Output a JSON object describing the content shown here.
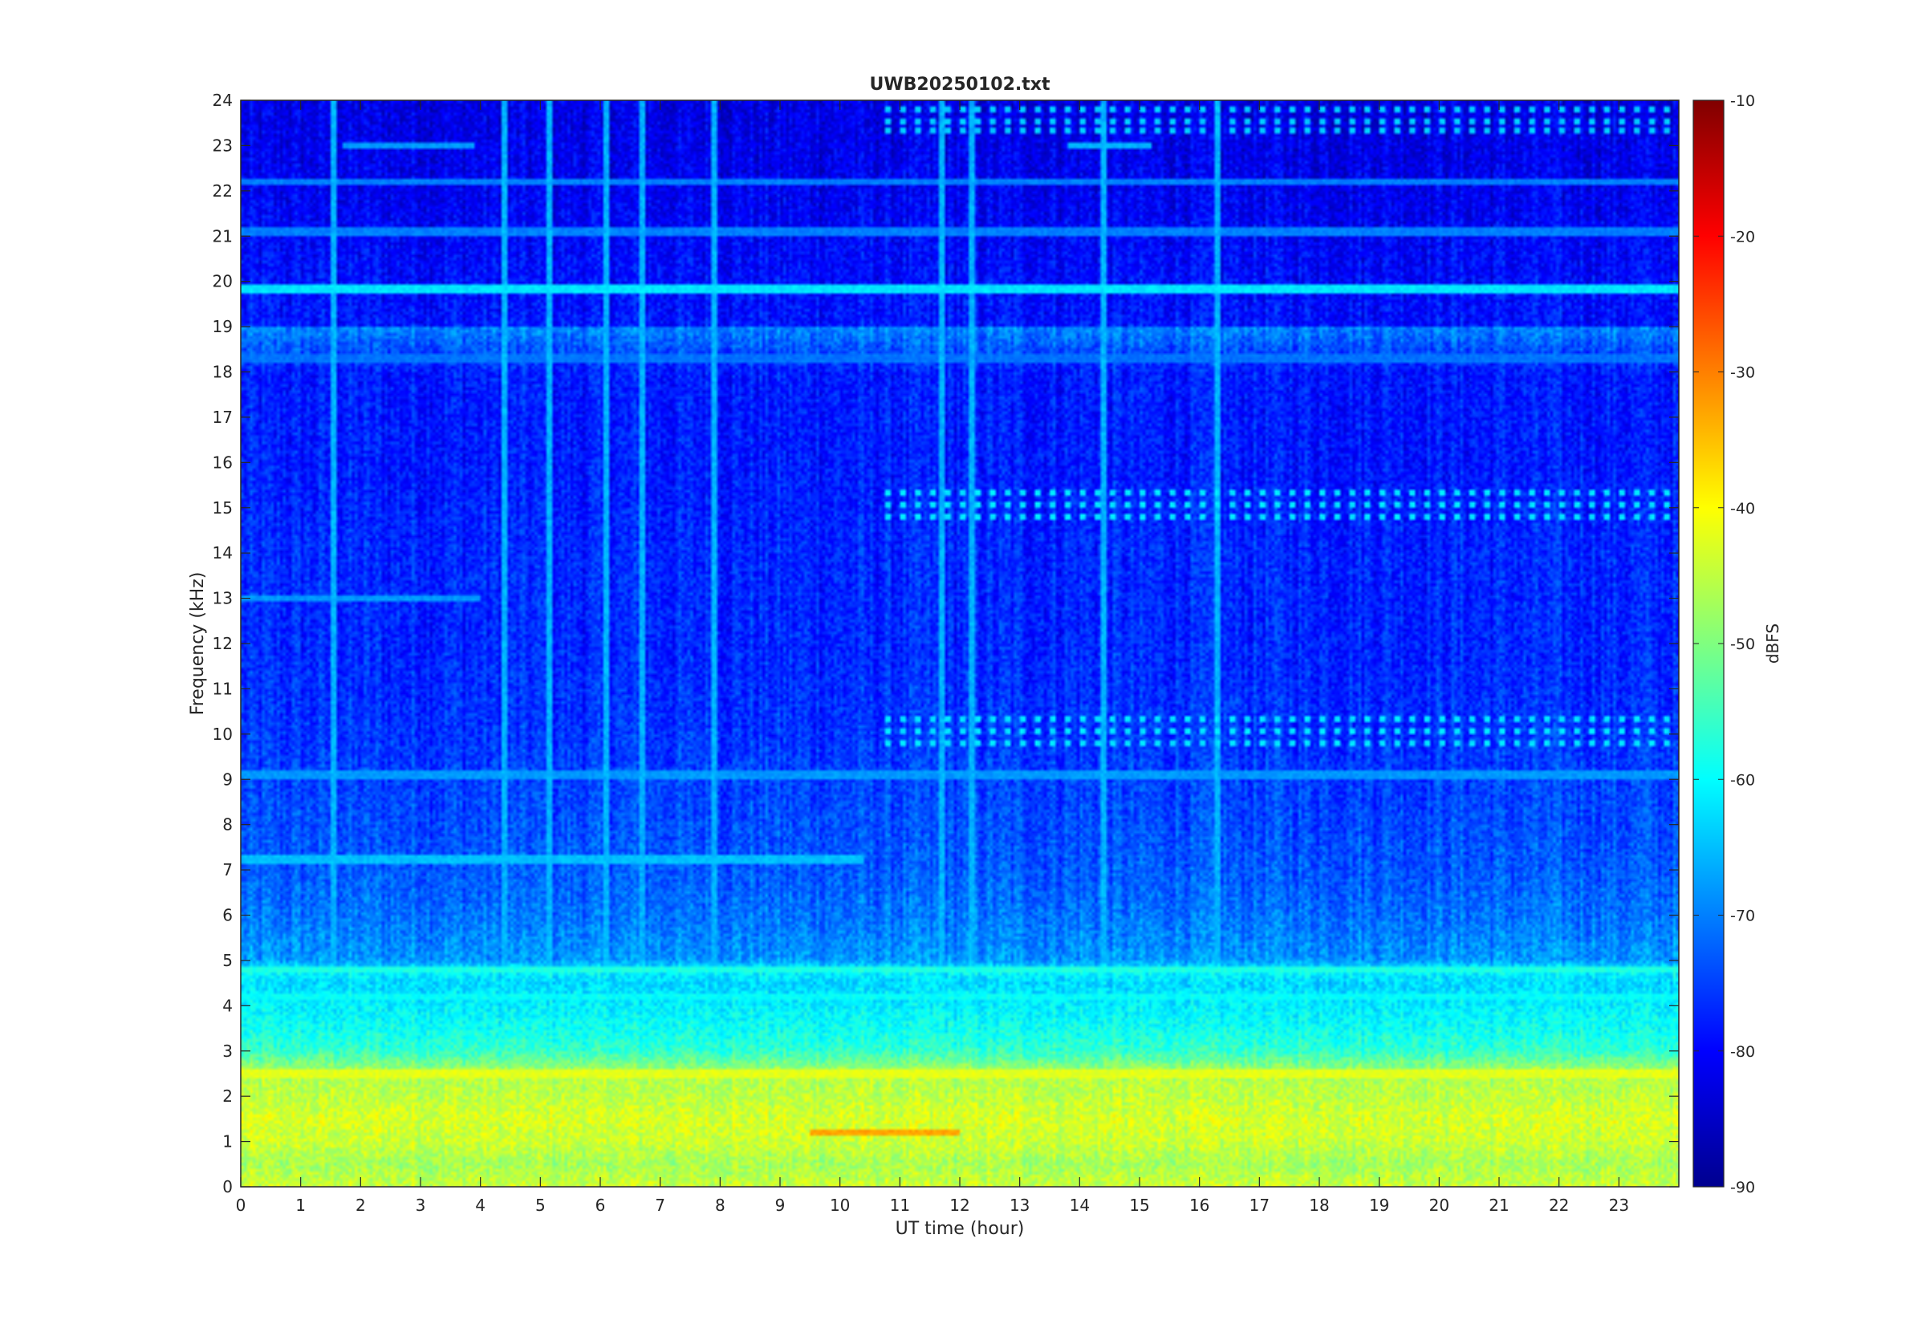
{
  "chart_data": {
    "type": "heatmap",
    "title": "UWB20250102.txt",
    "xlabel": "UT time (hour)",
    "ylabel": "Frequency (kHz)",
    "colorbar_label": "dBFS",
    "xlim": [
      0,
      24
    ],
    "ylim": [
      0,
      24
    ],
    "clim": [
      -90,
      -10
    ],
    "colormap": "jet",
    "x_ticks": [
      0,
      1,
      2,
      3,
      4,
      5,
      6,
      7,
      8,
      9,
      10,
      11,
      12,
      13,
      14,
      15,
      16,
      17,
      18,
      19,
      20,
      21,
      22,
      23
    ],
    "y_ticks": [
      0,
      1,
      2,
      3,
      4,
      5,
      6,
      7,
      8,
      9,
      10,
      11,
      12,
      13,
      14,
      15,
      16,
      17,
      18,
      19,
      20,
      21,
      22,
      23,
      24
    ],
    "colorbar_ticks": [
      -90,
      -80,
      -70,
      -60,
      -50,
      -40,
      -30,
      -20,
      -10
    ],
    "frequency_profile_khz_dbfs": [
      [
        0.0,
        -44
      ],
      [
        0.5,
        -47
      ],
      [
        1.0,
        -44
      ],
      [
        1.5,
        -43
      ],
      [
        2.0,
        -45
      ],
      [
        2.5,
        -46
      ],
      [
        3.0,
        -56
      ],
      [
        3.5,
        -59
      ],
      [
        4.0,
        -61
      ],
      [
        4.5,
        -63
      ],
      [
        4.8,
        -60
      ],
      [
        5.0,
        -68
      ],
      [
        6.0,
        -71
      ],
      [
        7.0,
        -73
      ],
      [
        8.0,
        -74
      ],
      [
        9.0,
        -75
      ],
      [
        10.0,
        -76
      ],
      [
        12.0,
        -77
      ],
      [
        14.0,
        -77
      ],
      [
        16.0,
        -78
      ],
      [
        18.0,
        -78
      ],
      [
        19.85,
        -62
      ],
      [
        20.0,
        -79
      ],
      [
        22.0,
        -81
      ],
      [
        24.0,
        -82
      ]
    ],
    "persistent_lines": [
      {
        "freq_khz": 19.85,
        "t_start": 0,
        "t_end": 24,
        "level_dbfs": -62
      },
      {
        "freq_khz": 22.2,
        "t_start": 0,
        "t_end": 24,
        "level_dbfs": -70
      },
      {
        "freq_khz": 21.1,
        "t_start": 0,
        "t_end": 24,
        "level_dbfs": -70
      },
      {
        "freq_khz": 18.3,
        "t_start": 0,
        "t_end": 24,
        "level_dbfs": -71
      },
      {
        "freq_khz": 4.8,
        "t_start": 0,
        "t_end": 24,
        "level_dbfs": -58
      },
      {
        "freq_khz": 4.2,
        "t_start": 0,
        "t_end": 24,
        "level_dbfs": -60
      },
      {
        "freq_khz": 2.5,
        "t_start": 0,
        "t_end": 24,
        "level_dbfs": -42
      },
      {
        "freq_khz": 1.2,
        "t_start": 9.5,
        "t_end": 12,
        "level_dbfs": -33
      },
      {
        "freq_khz": 7.25,
        "t_start": 0,
        "t_end": 10.4,
        "level_dbfs": -65
      },
      {
        "freq_khz": 9.1,
        "t_start": 0,
        "t_end": 24,
        "level_dbfs": -68
      },
      {
        "freq_khz": 13.0,
        "t_start": 0,
        "t_end": 4,
        "level_dbfs": -68
      },
      {
        "freq_khz": 23.0,
        "t_start": 1.7,
        "t_end": 3.9,
        "level_dbfs": -68
      },
      {
        "freq_khz": 23.0,
        "t_start": 13.8,
        "t_end": 15.2,
        "level_dbfs": -66
      }
    ],
    "intermittent_bursts": [
      {
        "freq_khz": 15.1,
        "t_start": 10.7,
        "t_end": 24,
        "level_dbfs": -62
      },
      {
        "freq_khz": 10.1,
        "t_start": 10.7,
        "t_end": 24,
        "level_dbfs": -62
      },
      {
        "freq_khz": 23.5,
        "t_start": 10.7,
        "t_end": 24,
        "level_dbfs": -64
      }
    ],
    "broadband_vertical_events_hour": [
      1.55,
      4.4,
      5.15,
      6.1,
      6.7,
      7.9,
      11.7,
      12.2,
      14.4,
      16.3
    ]
  }
}
